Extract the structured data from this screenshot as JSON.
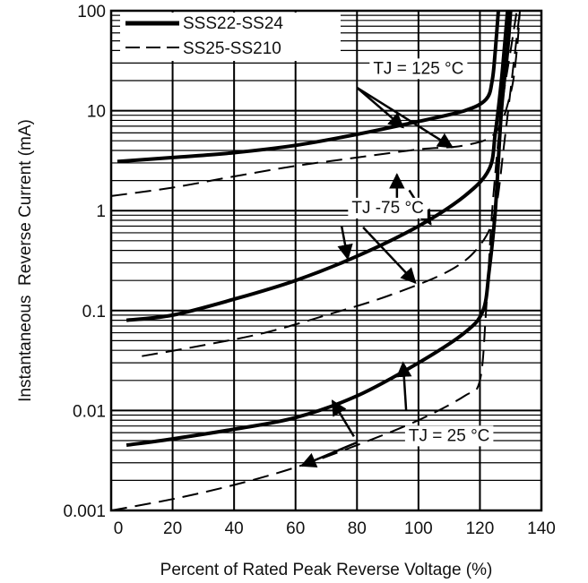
{
  "chart_data": {
    "type": "line",
    "xlabel": "Percent of Rated Peak Reverse Voltage (%)",
    "ylabel": "Instantaneous  Reverse Current (mA)",
    "xlim": [
      0,
      140
    ],
    "ylim": [
      0.001,
      100
    ],
    "yscale": "log",
    "x_ticks": [
      0,
      20,
      40,
      60,
      80,
      100,
      120,
      140
    ],
    "x_tick_labels": [
      "0",
      "20",
      "40",
      "60",
      "80",
      "100",
      "120",
      "140"
    ],
    "y_ticks": [
      0.001,
      0.01,
      0.1,
      1,
      10,
      100
    ],
    "y_tick_labels": [
      "0.001",
      "0.01",
      "0.1",
      "1",
      "10",
      "100"
    ],
    "grid": true,
    "legend_position": "top-left",
    "series": [
      {
        "name": "SSS22-SS24",
        "style": "solid",
        "group": "TJ = 125 °C",
        "points": [
          [
            2,
            3.1
          ],
          [
            20,
            3.4
          ],
          [
            40,
            3.8
          ],
          [
            60,
            4.5
          ],
          [
            80,
            5.8
          ],
          [
            100,
            7.8
          ],
          [
            115,
            10
          ],
          [
            122,
            13
          ],
          [
            124,
            20
          ],
          [
            125,
            40
          ],
          [
            126,
            100
          ]
        ]
      },
      {
        "name": "SSS22-SS24",
        "style": "solid",
        "group": "TJ -75 °C",
        "points": [
          [
            5,
            0.08
          ],
          [
            20,
            0.09
          ],
          [
            40,
            0.13
          ],
          [
            60,
            0.2
          ],
          [
            80,
            0.35
          ],
          [
            100,
            0.7
          ],
          [
            115,
            1.4
          ],
          [
            123,
            2.6
          ],
          [
            125,
            6
          ],
          [
            127,
            20
          ],
          [
            129,
            100
          ]
        ]
      },
      {
        "name": "SSS22-SS24",
        "style": "solid",
        "group": "TJ = 25 °C",
        "points": [
          [
            5,
            0.0045
          ],
          [
            20,
            0.0052
          ],
          [
            40,
            0.0065
          ],
          [
            60,
            0.0085
          ],
          [
            80,
            0.014
          ],
          [
            100,
            0.03
          ],
          [
            115,
            0.06
          ],
          [
            121,
            0.1
          ],
          [
            123,
            0.25
          ],
          [
            125,
            1
          ],
          [
            127,
            10
          ],
          [
            129,
            40
          ],
          [
            130,
            100
          ]
        ]
      },
      {
        "name": "SS25-SS210",
        "style": "dashed",
        "group": "TJ = 125 °C",
        "points": [
          [
            0,
            1.4
          ],
          [
            20,
            1.7
          ],
          [
            40,
            2.2
          ],
          [
            60,
            2.8
          ],
          [
            80,
            3.4
          ],
          [
            100,
            4.1
          ],
          [
            115,
            4.5
          ],
          [
            125,
            6
          ],
          [
            130,
            15
          ],
          [
            132,
            40
          ],
          [
            133,
            100
          ]
        ]
      },
      {
        "name": "SS25-SS210",
        "style": "dashed",
        "group": "TJ -75 °C",
        "points": [
          [
            10,
            0.035
          ],
          [
            30,
            0.045
          ],
          [
            50,
            0.06
          ],
          [
            70,
            0.09
          ],
          [
            90,
            0.14
          ],
          [
            110,
            0.25
          ],
          [
            120,
            0.45
          ],
          [
            125,
            1
          ],
          [
            128,
            5
          ],
          [
            131,
            30
          ],
          [
            133,
            100
          ]
        ]
      },
      {
        "name": "SS25-SS210",
        "style": "dashed",
        "group": "TJ = 25 °C",
        "points": [
          [
            0,
            0.001
          ],
          [
            20,
            0.0013
          ],
          [
            40,
            0.0018
          ],
          [
            60,
            0.0027
          ],
          [
            80,
            0.0045
          ],
          [
            100,
            0.008
          ],
          [
            115,
            0.014
          ],
          [
            120,
            0.02
          ],
          [
            122,
            0.1
          ],
          [
            124,
            1
          ],
          [
            127,
            10
          ],
          [
            130,
            40
          ],
          [
            132,
            100
          ]
        ]
      }
    ],
    "annotations": [
      {
        "text": "TJ = 125 °C",
        "x": 100,
        "y": 26
      },
      {
        "text": "TJ -75 °C",
        "x": 90,
        "y": 1.05
      },
      {
        "text": "TJ = 25 °C",
        "x": 110,
        "y": 0.0055
      }
    ],
    "annotation_arrows": [
      {
        "from": [
          80,
          17
        ],
        "to": [
          95,
          6.8
        ]
      },
      {
        "from": [
          80,
          17
        ],
        "to": [
          111,
          4.3
        ]
      },
      {
        "from": [
          97,
          1.6
        ],
        "to": [
          104,
          0.73
        ]
      },
      {
        "from": [
          93,
          1.1
        ],
        "to": [
          93,
          2.3
        ]
      },
      {
        "from": [
          75,
          0.7
        ],
        "to": [
          77,
          0.33
        ]
      },
      {
        "from": [
          82,
          0.68
        ],
        "to": [
          99,
          0.19
        ]
      },
      {
        "from": [
          96,
          0.01
        ],
        "to": [
          95,
          0.03
        ]
      },
      {
        "from": [
          79,
          0.0055
        ],
        "to": [
          72,
          0.0125
        ]
      },
      {
        "from": [
          80,
          0.0048
        ],
        "to": [
          62,
          0.0028
        ]
      }
    ]
  }
}
